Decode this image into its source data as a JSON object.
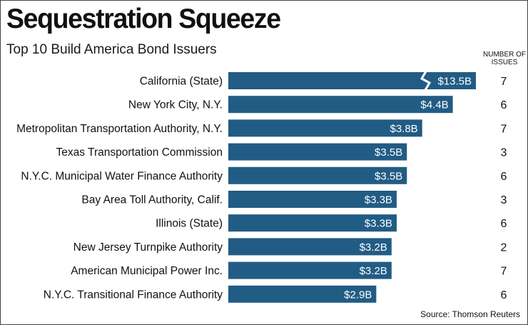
{
  "header": {
    "title": "Sequestration Squeeze",
    "subtitle": "Top 10 Build America Bond Issuers",
    "count_header": "NUMBER OF ISSUES"
  },
  "footer": {
    "source": "Source: Thomson Reuters"
  },
  "colors": {
    "bar": "#215C84",
    "break": "#ffffff",
    "text": "#111111"
  },
  "chart_data": {
    "type": "bar",
    "orientation": "horizontal",
    "title": "Sequestration Squeeze",
    "subtitle": "Top 10 Build America Bond Issuers",
    "unit": "billion USD",
    "axis_break_on": "California (State)",
    "categories": [
      "California (State)",
      "New York City, N.Y.",
      "Metropolitan Transportation Authority, N.Y.",
      "Texas Transportation Commission",
      "N.Y.C. Municipal Water Finance Authority",
      "Bay Area Toll Authority, Calif.",
      "Illinois (State)",
      "New Jersey Turnpike Authority",
      "American Municipal Power Inc.",
      "N.Y.C. Transitional Finance Authority"
    ],
    "values": [
      13.5,
      4.4,
      3.8,
      3.5,
      3.5,
      3.3,
      3.3,
      3.2,
      3.2,
      2.9
    ],
    "value_labels": [
      "$13.5B",
      "$4.4B",
      "$3.8B",
      "$3.5B",
      "$3.5B",
      "$3.3B",
      "$3.3B",
      "$3.2B",
      "$3.2B",
      "$2.9B"
    ],
    "number_of_issues": [
      7,
      6,
      7,
      3,
      6,
      3,
      6,
      2,
      7,
      6
    ],
    "source": "Source: Thomson Reuters"
  }
}
